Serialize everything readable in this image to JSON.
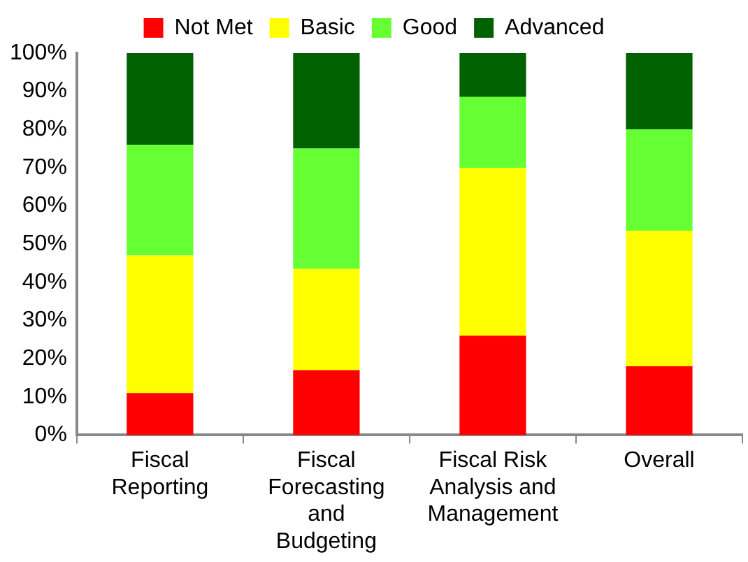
{
  "chart_data": {
    "type": "bar",
    "stacked": true,
    "categories": [
      "Fiscal Reporting",
      "Fiscal Forecasting and Budgeting",
      "Fiscal Risk Analysis and Management",
      "Overall"
    ],
    "series": [
      {
        "name": "Not Met",
        "color": "#ff0000",
        "values": [
          11,
          17,
          26,
          18
        ]
      },
      {
        "name": "Basic",
        "color": "#ffff00",
        "values": [
          36,
          26.5,
          44,
          35.5
        ]
      },
      {
        "name": "Good",
        "color": "#66ff33",
        "values": [
          29,
          31.5,
          18.5,
          26.5
        ]
      },
      {
        "name": "Advanced",
        "color": "#006100",
        "values": [
          24,
          25,
          11.5,
          20
        ]
      }
    ],
    "ylim": [
      0,
      100
    ],
    "yticks": [
      {
        "value": 0,
        "label": "0%"
      },
      {
        "value": 10,
        "label": "10%"
      },
      {
        "value": 20,
        "label": "20%"
      },
      {
        "value": 30,
        "label": "30%"
      },
      {
        "value": 40,
        "label": "40%"
      },
      {
        "value": 50,
        "label": "50%"
      },
      {
        "value": 60,
        "label": "60%"
      },
      {
        "value": 70,
        "label": "70%"
      },
      {
        "value": 80,
        "label": "80%"
      },
      {
        "value": 90,
        "label": "90%"
      },
      {
        "value": 100,
        "label": "100%"
      }
    ],
    "grid": false,
    "legend": "top"
  }
}
